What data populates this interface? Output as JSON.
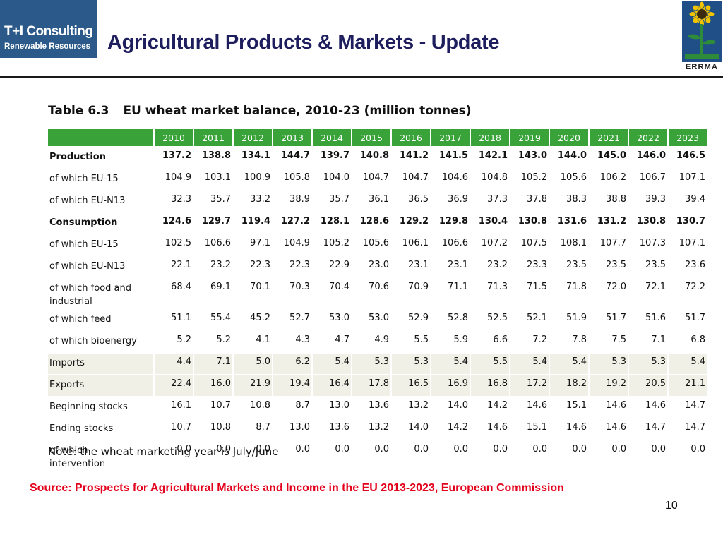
{
  "logo_left": {
    "line1": "T+I Consulting",
    "line2": "Renewable Resources"
  },
  "title": "Agricultural Products & Markets - Update",
  "logo_right": {
    "text": "ERRMA"
  },
  "caption": {
    "number": "Table 6.3",
    "text": "EU wheat market balance, 2010-23 (million tonnes)"
  },
  "table": {
    "years": [
      "2010",
      "2011",
      "2012",
      "2013",
      "2014",
      "2015",
      "2016",
      "2017",
      "2018",
      "2019",
      "2020",
      "2021",
      "2022",
      "2023"
    ],
    "rows": [
      {
        "label": "Production",
        "values": [
          "137.2",
          "138.8",
          "134.1",
          "144.7",
          "139.7",
          "140.8",
          "141.2",
          "141.5",
          "142.1",
          "143.0",
          "144.0",
          "145.0",
          "146.0",
          "146.5"
        ]
      },
      {
        "label": "of which EU-15",
        "values": [
          "104.9",
          "103.1",
          "100.9",
          "105.8",
          "104.0",
          "104.7",
          "104.7",
          "104.6",
          "104.8",
          "105.2",
          "105.6",
          "106.2",
          "106.7",
          "107.1"
        ]
      },
      {
        "label": "of which EU-N13",
        "values": [
          "32.3",
          "35.7",
          "33.2",
          "38.9",
          "35.7",
          "36.1",
          "36.5",
          "36.9",
          "37.3",
          "37.8",
          "38.3",
          "38.8",
          "39.3",
          "39.4"
        ]
      },
      {
        "label": "Consumption",
        "values": [
          "124.6",
          "129.7",
          "119.4",
          "127.2",
          "128.1",
          "128.6",
          "129.2",
          "129.8",
          "130.4",
          "130.8",
          "131.6",
          "131.2",
          "130.8",
          "130.7"
        ]
      },
      {
        "label": "of which EU-15",
        "values": [
          "102.5",
          "106.6",
          "97.1",
          "104.9",
          "105.2",
          "105.6",
          "106.1",
          "106.6",
          "107.2",
          "107.5",
          "108.1",
          "107.7",
          "107.3",
          "107.1"
        ]
      },
      {
        "label": "of which EU-N13",
        "values": [
          "22.1",
          "23.2",
          "22.3",
          "22.3",
          "22.9",
          "23.0",
          "23.1",
          "23.1",
          "23.2",
          "23.3",
          "23.5",
          "23.5",
          "23.5",
          "23.6"
        ]
      },
      {
        "label_line1": "of which food and",
        "label_line2": "industrial",
        "values": [
          "68.4",
          "69.1",
          "70.1",
          "70.3",
          "70.4",
          "70.6",
          "70.9",
          "71.1",
          "71.3",
          "71.5",
          "71.8",
          "72.0",
          "72.1",
          "72.2"
        ]
      },
      {
        "label": "of which feed",
        "values": [
          "51.1",
          "55.4",
          "45.2",
          "52.7",
          "53.0",
          "53.0",
          "52.9",
          "52.8",
          "52.5",
          "52.1",
          "51.9",
          "51.7",
          "51.6",
          "51.7"
        ]
      },
      {
        "label": "of which bioenergy",
        "values": [
          "5.2",
          "5.2",
          "4.1",
          "4.3",
          "4.7",
          "4.9",
          "5.5",
          "5.9",
          "6.6",
          "7.2",
          "7.8",
          "7.5",
          "7.1",
          "6.8"
        ]
      },
      {
        "label": "Imports",
        "values": [
          "4.4",
          "7.1",
          "5.0",
          "6.2",
          "5.4",
          "5.3",
          "5.3",
          "5.4",
          "5.5",
          "5.4",
          "5.4",
          "5.3",
          "5.3",
          "5.4"
        ]
      },
      {
        "label": "Exports",
        "values": [
          "22.4",
          "16.0",
          "21.9",
          "19.4",
          "16.4",
          "17.8",
          "16.5",
          "16.9",
          "16.8",
          "17.2",
          "18.2",
          "19.2",
          "20.5",
          "21.1"
        ]
      },
      {
        "label": "Beginning stocks",
        "values": [
          "16.1",
          "10.7",
          "10.8",
          "8.7",
          "13.0",
          "13.6",
          "13.2",
          "14.0",
          "14.2",
          "14.6",
          "15.1",
          "14.6",
          "14.6",
          "14.7"
        ]
      },
      {
        "label": "Ending stocks",
        "values": [
          "10.7",
          "10.8",
          "8.7",
          "13.0",
          "13.6",
          "13.2",
          "14.0",
          "14.2",
          "14.6",
          "15.1",
          "14.6",
          "14.6",
          "14.7",
          "14.7"
        ]
      },
      {
        "label_line1": "of which",
        "label_line2": "intervention",
        "values": [
          "0.0",
          "0.0",
          "0.0",
          "0.0",
          "0.0",
          "0.0",
          "0.0",
          "0.0",
          "0.0",
          "0.0",
          "0.0",
          "0.0",
          "0.0",
          "0.0"
        ]
      }
    ]
  },
  "note": "Note: the wheat marketing year is July/June",
  "source": "Source: Prospects for Agricultural Markets and Income in the EU 2013-2023, European Commission",
  "page_number": "10",
  "colors": {
    "header_green": "#39a33a",
    "title_navy": "#1e1e5e",
    "source_red": "#e3001b",
    "logo_blue": "#2b5a8a"
  }
}
